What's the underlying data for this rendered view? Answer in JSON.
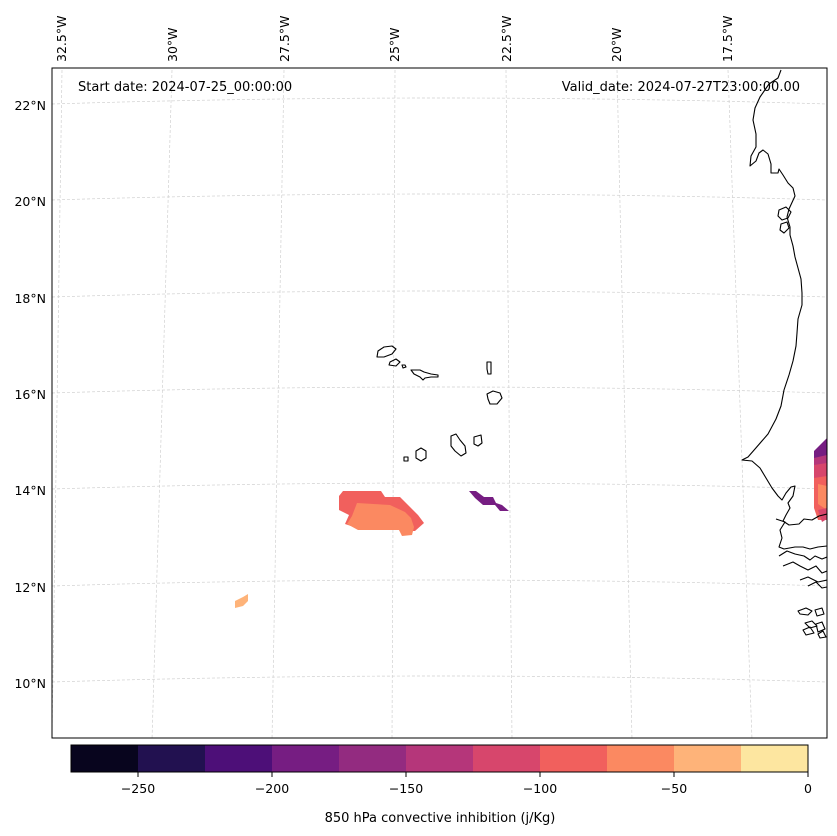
{
  "header": {
    "start_date": "Start date: 2024-07-25_00:00:00",
    "valid_date": "Valid_date: 2024-07-27T23:00:00.00"
  },
  "map": {
    "longitude_labels": [
      "32.5°W",
      "30°W",
      "27.5°W",
      "25°W",
      "22.5°W",
      "20°W",
      "17.5°W"
    ],
    "latitude_labels": [
      "22°N",
      "20°N",
      "18°N",
      "16°N",
      "14°N",
      "12°N",
      "10°N"
    ],
    "gridlines": true,
    "features": [
      "coastline of West Africa",
      "Cape Verde islands"
    ]
  },
  "colorbar": {
    "label": "850 hPa convective inhibition (j/Kg)",
    "tick_labels": [
      "−250",
      "−200",
      "−150",
      "−100",
      "−50",
      "0"
    ],
    "bounds": [
      -275,
      -250,
      -225,
      -200,
      -175,
      -150,
      -125,
      -100,
      -75,
      -50,
      -25,
      0
    ],
    "colors": [
      "#08051e",
      "#221150",
      "#4d0f78",
      "#761d82",
      "#932b80",
      "#b5367a",
      "#d7466c",
      "#f1605d",
      "#fb8961",
      "#feb379",
      "#fde6a0"
    ]
  },
  "chart_data": {
    "type": "heatmap",
    "title": "850 hPa convective inhibition (j/Kg)",
    "units": "j/Kg",
    "start_date": "Start date: 2024-07-25_00:00:00",
    "valid_date": "Valid_date: 2024-07-27T23:00:00.00",
    "x_range_deg": [
      -33,
      -16.3
    ],
    "y_range_deg": [
      9,
      22.8
    ],
    "colorbar_range": [
      -275,
      0
    ],
    "regions": [
      {
        "name": "southwest of Cape Verde",
        "approx_center": [
          -25.5,
          13.6
        ],
        "values_range": [
          -75,
          -25
        ]
      },
      {
        "name": "south of Cape Verde",
        "approx_center": [
          -22.5,
          13.8
        ],
        "values_range": [
          -175,
          -150
        ]
      },
      {
        "name": "near 29W 11.6N",
        "approx_center": [
          -29,
          11.6
        ],
        "values_range": [
          -25,
          0
        ]
      },
      {
        "name": "Senegal coast",
        "approx_center": [
          -16.5,
          14.3
        ],
        "values_range": [
          -200,
          -75
        ]
      }
    ]
  }
}
